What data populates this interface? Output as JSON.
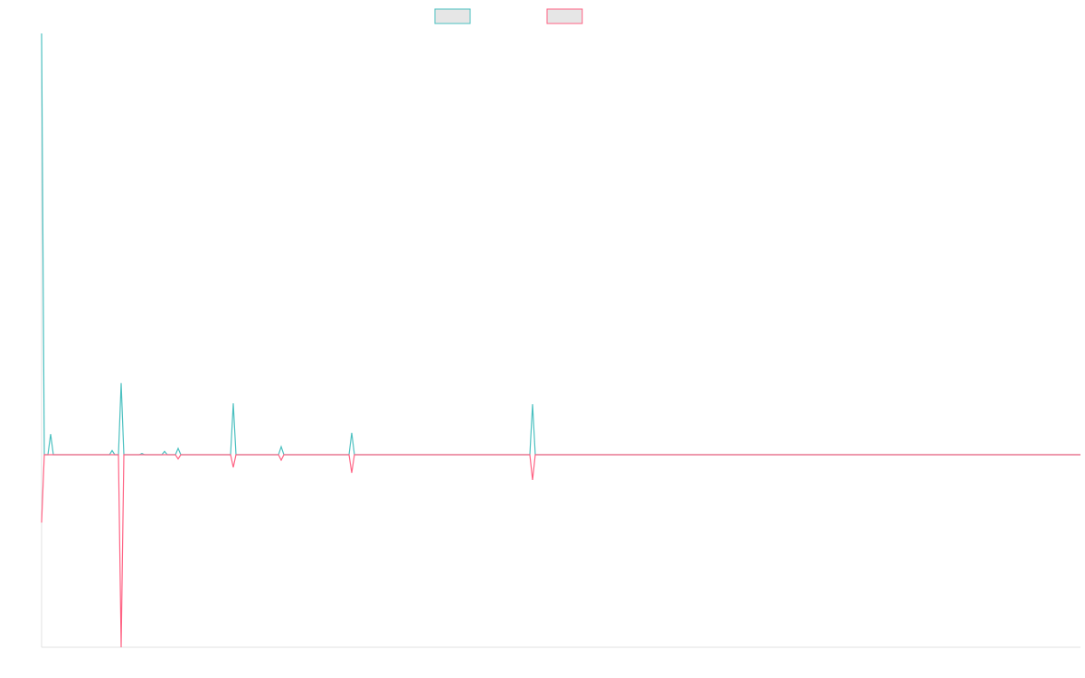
{
  "chart_data": {
    "type": "line",
    "x": [
      0,
      3,
      7,
      10,
      13,
      75,
      78,
      81,
      85,
      88,
      91,
      108,
      111,
      114,
      133,
      136,
      139,
      148,
      151,
      154,
      209,
      212,
      215,
      262,
      265,
      268,
      340,
      343,
      346,
      540,
      543,
      546,
      1149
    ],
    "xlim": [
      0,
      1149
    ],
    "ylim": [
      -45.7,
      100
    ],
    "legend": "top",
    "series": [
      {
        "color": "#4bc0c0",
        "values": [
          100,
          0,
          0,
          4.9,
          0,
          0,
          1,
          0,
          0,
          17,
          0,
          0,
          0.3,
          0,
          0,
          0.8,
          0,
          0,
          1.5,
          0,
          0,
          12.2,
          0,
          0,
          1.9,
          0,
          0,
          5.2,
          0,
          0,
          12,
          0,
          0
        ]
      },
      {
        "color": "#ff6384",
        "values": [
          -16.1,
          0,
          0,
          0,
          0,
          0,
          0,
          0,
          0,
          -45.7,
          0,
          0,
          0,
          0,
          0,
          0,
          0,
          0,
          -1,
          0,
          0,
          -3,
          0,
          0,
          -1.3,
          0,
          0,
          -4.3,
          0,
          0,
          -6,
          0,
          0
        ]
      }
    ]
  }
}
